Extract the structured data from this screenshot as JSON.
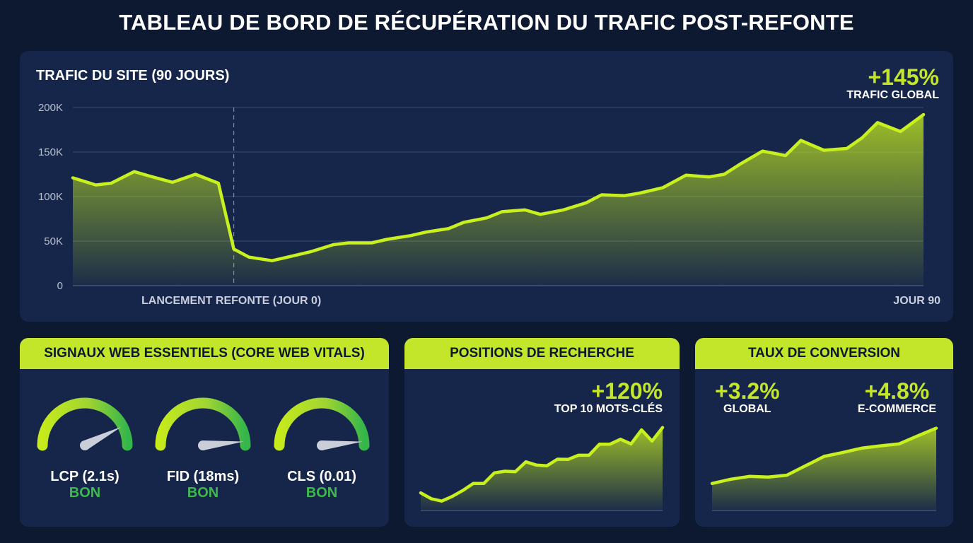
{
  "title": "TABLEAU DE BORD DE RÉCUPÉRATION DU TRAFIC POST-REFONTE",
  "colors": {
    "accent": "#c3e62a",
    "good": "#3fb84e",
    "background": "#0d1831",
    "panel": "#16264a"
  },
  "main": {
    "title": "TRAFIC DU SITE (90 JOURS)",
    "kpi_value": "+145%",
    "kpi_label": "TRAFIC GLOBAL",
    "launch_label": "LANCEMENT REFONTE (JOUR 0)",
    "end_label": "JOUR 90"
  },
  "cwv": {
    "title": "SIGNAUX WEB ESSENTIELS (CORE WEB VITALS)",
    "gauges": [
      {
        "label": "LCP (2.1s)",
        "status": "BON",
        "level": 0.85
      },
      {
        "label": "FID (18ms)",
        "status": "BON",
        "level": 0.97
      },
      {
        "label": "CLS (0.01)",
        "status": "BON",
        "level": 0.97
      }
    ]
  },
  "positions": {
    "title": "POSITIONS DE RECHERCHE",
    "kpi_value": "+120%",
    "kpi_label": "TOP 10 MOTS-CLÉS"
  },
  "conversion": {
    "title": "TAUX DE CONVERSION",
    "kpi1_value": "+3.2%",
    "kpi1_label": "GLOBAL",
    "kpi2_value": "+4.8%",
    "kpi2_label": "E-COMMERCE"
  },
  "chart_data": [
    {
      "type": "area",
      "title": "TRAFIC DU SITE (90 JOURS)",
      "xlabel": "",
      "ylabel": "",
      "yticks": [
        "0",
        "50K",
        "100K",
        "150K",
        "200K"
      ],
      "ylim": [
        0,
        200000
      ],
      "xlim": [
        -21,
        90
      ],
      "grid": true,
      "annotation": {
        "x": 0,
        "label": "LANCEMENT REFONTE (JOUR 0)"
      },
      "x": [
        -21,
        -18,
        -16,
        -13,
        -11,
        -8,
        -5,
        -2,
        0,
        2,
        5,
        8,
        10,
        13,
        15,
        18,
        20,
        23,
        25,
        28,
        30,
        33,
        35,
        38,
        40,
        43,
        46,
        48,
        51,
        53,
        56,
        59,
        62,
        64,
        66,
        69,
        72,
        74,
        77,
        80,
        82,
        84,
        87,
        90
      ],
      "values": [
        121000,
        113000,
        115000,
        128000,
        123000,
        116000,
        125000,
        115000,
        41000,
        32000,
        28000,
        34000,
        38000,
        46000,
        48000,
        48000,
        52000,
        56000,
        60000,
        64000,
        71000,
        76000,
        83000,
        85000,
        80000,
        85000,
        93000,
        102000,
        101000,
        104000,
        110000,
        124000,
        122000,
        125000,
        136000,
        151000,
        146000,
        163000,
        152000,
        154000,
        166000,
        183000,
        173000,
        192000
      ]
    },
    {
      "type": "area",
      "title": "POSITIONS DE RECHERCHE",
      "values": [
        75,
        50,
        40,
        60,
        85,
        115,
        115,
        160,
        167,
        165,
        207,
        193,
        190,
        218,
        217,
        235,
        235,
        282,
        282,
        303,
        283,
        343,
        295,
        353
      ],
      "ylim": [
        0,
        400
      ]
    },
    {
      "type": "area",
      "title": "TAUX DE CONVERSION",
      "values": [
        115,
        133,
        145,
        142,
        150,
        190,
        230,
        247,
        265,
        275,
        283,
        317,
        350
      ],
      "ylim": [
        0,
        400
      ]
    }
  ]
}
